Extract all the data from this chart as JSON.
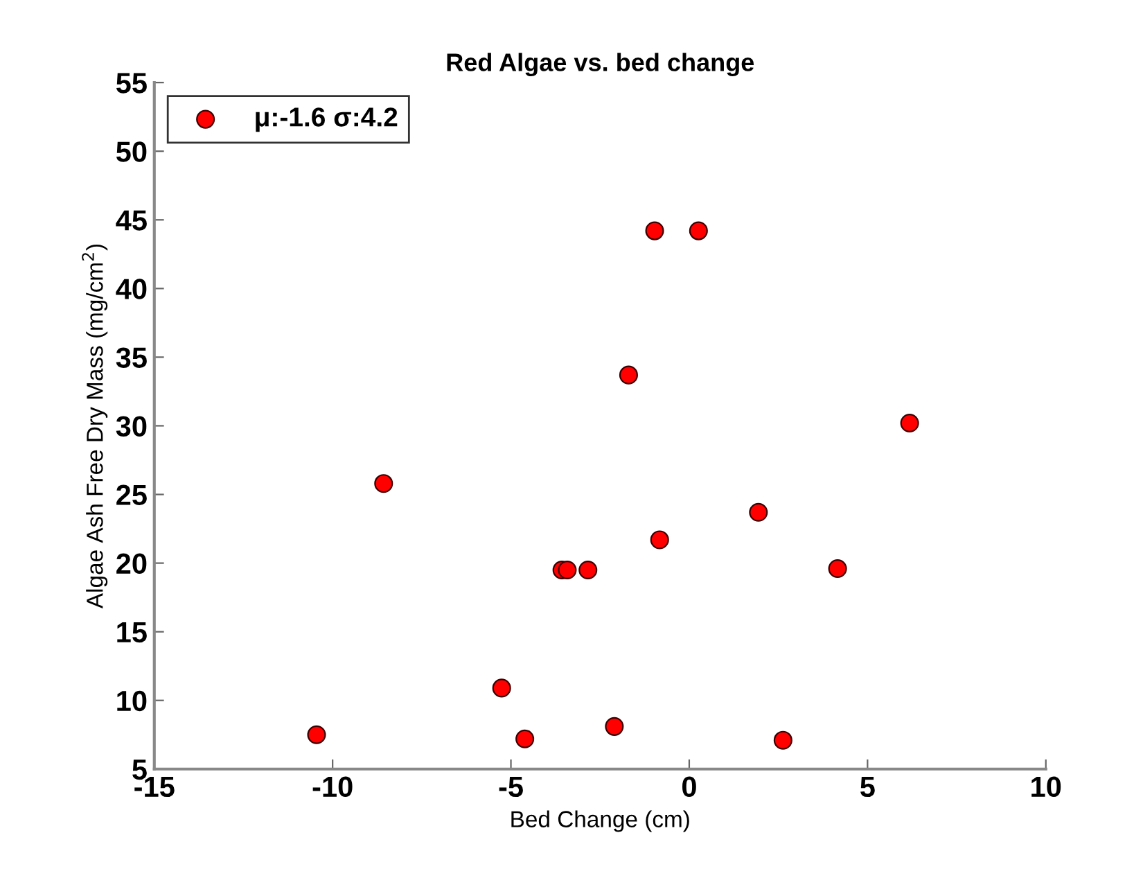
{
  "chart_data": {
    "type": "scatter",
    "title": "Red Algae vs. bed change",
    "xlabel": "Bed Change (cm)",
    "ylabel": "Algae Ash Free Dry Mass (mg/cm$^{2}$)",
    "series": [
      {
        "name": "μ:-1.6 σ:4.2",
        "color": "#ff0000",
        "x": [
          -10.45,
          -8.57,
          -5.26,
          -4.61,
          -3.57,
          -3.42,
          -2.84,
          -2.1,
          -1.7,
          -0.97,
          -0.83,
          0.26,
          1.94,
          2.63,
          4.16,
          6.18
        ],
        "values": [
          7.5,
          25.8,
          10.9,
          7.2,
          19.5,
          19.5,
          19.5,
          8.1,
          33.7,
          44.2,
          21.7,
          44.2,
          23.7,
          7.1,
          19.6,
          30.2
        ]
      }
    ],
    "xlim": [
      -15,
      10
    ],
    "ylim": [
      5,
      55
    ],
    "xticks": [
      -15,
      -10,
      -5,
      0,
      5,
      10
    ],
    "yticks": [
      5,
      10,
      15,
      20,
      25,
      30,
      35,
      40,
      45,
      50,
      55
    ],
    "marker": "circle",
    "grid": false,
    "legend": "top left"
  }
}
